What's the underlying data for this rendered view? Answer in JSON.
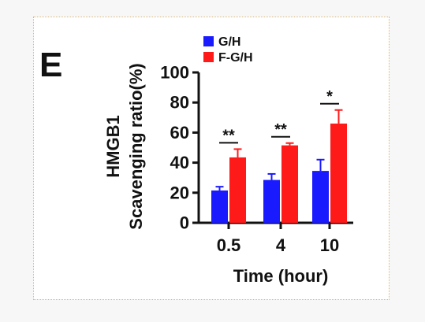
{
  "panel_letter": "E",
  "colors": {
    "frame": "#d9b77a",
    "series_gh": "#1a1aff",
    "series_fgh": "#ff1a1a",
    "text": "#111111"
  },
  "chart_data": {
    "type": "bar",
    "title": "",
    "xlabel": "Time (hour)",
    "ylabel_line1": "HMGB1",
    "ylabel_line2": "Scavenging ratio(%)",
    "categories": [
      "0.5",
      "4",
      "10"
    ],
    "ylim": [
      0,
      100
    ],
    "yticks": [
      0,
      20,
      40,
      60,
      80,
      100
    ],
    "legend_position": "top",
    "series": [
      {
        "name": "G/H",
        "color": "#1a1aff",
        "values": [
          21.5,
          28.5,
          34.5
        ],
        "errors": [
          2.5,
          4,
          7.5
        ]
      },
      {
        "name": "F-G/H",
        "color": "#ff1a1a",
        "values": [
          43.5,
          51.5,
          66
        ],
        "errors": [
          5.5,
          1.5,
          9
        ]
      }
    ],
    "significance": [
      "**",
      "**",
      "*"
    ]
  }
}
